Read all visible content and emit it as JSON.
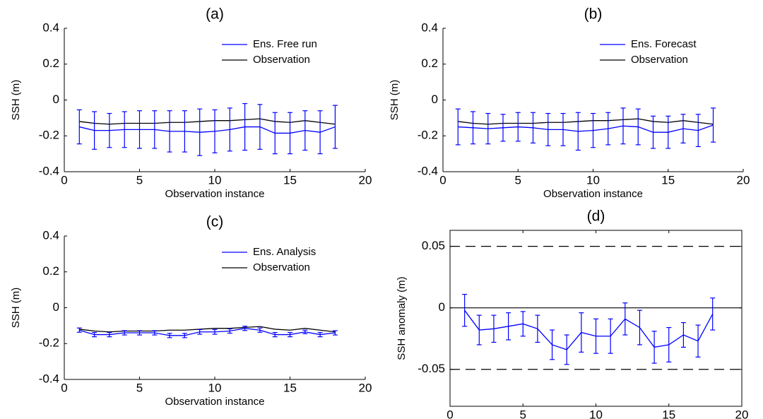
{
  "chart_data": [
    {
      "type": "errorbar",
      "title": "(a)",
      "xlabel": "Observation instance",
      "ylabel": "SSH (m)",
      "x": [
        1,
        2,
        3,
        4,
        5,
        6,
        7,
        8,
        9,
        10,
        11,
        12,
        13,
        14,
        15,
        16,
        17,
        18
      ],
      "series": [
        {
          "name": "Ens. Free run",
          "color": "#0000ff",
          "values": [
            -0.15,
            -0.17,
            -0.17,
            -0.165,
            -0.165,
            -0.165,
            -0.175,
            -0.175,
            -0.18,
            -0.175,
            -0.165,
            -0.15,
            -0.15,
            -0.185,
            -0.185,
            -0.17,
            -0.18,
            -0.15
          ],
          "errors": [
            0.095,
            0.105,
            0.095,
            0.1,
            0.105,
            0.105,
            0.115,
            0.115,
            0.13,
            0.12,
            0.12,
            0.13,
            0.125,
            0.115,
            0.115,
            0.11,
            0.12,
            0.12
          ]
        },
        {
          "name": "Observation",
          "color": "#000000",
          "values": [
            -0.12,
            -0.13,
            -0.135,
            -0.13,
            -0.13,
            -0.13,
            -0.125,
            -0.125,
            -0.12,
            -0.115,
            -0.115,
            -0.11,
            -0.105,
            -0.12,
            -0.125,
            -0.115,
            -0.125,
            -0.135
          ]
        }
      ],
      "xlim": [
        0,
        20
      ],
      "xticks": [
        0,
        5,
        10,
        15,
        20
      ],
      "ylim": [
        -0.4,
        0.4
      ],
      "yticks": [
        -0.4,
        -0.2,
        0,
        0.2,
        0.4
      ],
      "legend": "top-right"
    },
    {
      "type": "errorbar",
      "title": "(b)",
      "xlabel": "Observation instance",
      "ylabel": "SSH (m)",
      "x": [
        1,
        2,
        3,
        4,
        5,
        6,
        7,
        8,
        9,
        10,
        11,
        12,
        13,
        14,
        15,
        16,
        17,
        18
      ],
      "series": [
        {
          "name": "Ens. Forecast",
          "color": "#0000ff",
          "values": [
            -0.15,
            -0.155,
            -0.16,
            -0.155,
            -0.15,
            -0.155,
            -0.165,
            -0.165,
            -0.175,
            -0.17,
            -0.16,
            -0.145,
            -0.15,
            -0.18,
            -0.18,
            -0.16,
            -0.17,
            -0.14
          ],
          "errors": [
            0.1,
            0.09,
            0.085,
            0.075,
            0.08,
            0.085,
            0.09,
            0.09,
            0.105,
            0.095,
            0.09,
            0.1,
            0.1,
            0.09,
            0.09,
            0.08,
            0.09,
            0.095
          ]
        },
        {
          "name": "Observation",
          "color": "#000000",
          "values": [
            -0.12,
            -0.13,
            -0.135,
            -0.13,
            -0.13,
            -0.13,
            -0.125,
            -0.125,
            -0.12,
            -0.115,
            -0.115,
            -0.11,
            -0.105,
            -0.12,
            -0.125,
            -0.115,
            -0.125,
            -0.135
          ]
        }
      ],
      "xlim": [
        0,
        20
      ],
      "xticks": [
        0,
        5,
        10,
        15,
        20
      ],
      "ylim": [
        -0.4,
        0.4
      ],
      "yticks": [
        -0.4,
        -0.2,
        0,
        0.2,
        0.4
      ],
      "legend": "top-right"
    },
    {
      "type": "errorbar",
      "title": "(c)",
      "xlabel": "Observation instance",
      "ylabel": "SSH (m)",
      "x": [
        1,
        2,
        3,
        4,
        5,
        6,
        7,
        8,
        9,
        10,
        11,
        12,
        13,
        14,
        15,
        16,
        17,
        18
      ],
      "series": [
        {
          "name": "Ens. Analysis",
          "color": "#0000ff",
          "values": [
            -0.125,
            -0.15,
            -0.15,
            -0.14,
            -0.14,
            -0.14,
            -0.155,
            -0.155,
            -0.135,
            -0.135,
            -0.13,
            -0.115,
            -0.125,
            -0.15,
            -0.15,
            -0.135,
            -0.15,
            -0.14
          ],
          "errors": [
            0.012,
            0.012,
            0.012,
            0.012,
            0.012,
            0.012,
            0.012,
            0.012,
            0.013,
            0.013,
            0.012,
            0.012,
            0.012,
            0.012,
            0.012,
            0.01,
            0.012,
            0.012
          ]
        },
        {
          "name": "Observation",
          "color": "#000000",
          "values": [
            -0.12,
            -0.13,
            -0.135,
            -0.13,
            -0.13,
            -0.13,
            -0.125,
            -0.125,
            -0.12,
            -0.115,
            -0.115,
            -0.11,
            -0.105,
            -0.12,
            -0.125,
            -0.115,
            -0.125,
            -0.135
          ]
        }
      ],
      "xlim": [
        0,
        20
      ],
      "xticks": [
        0,
        5,
        10,
        15,
        20
      ],
      "ylim": [
        -0.4,
        0.4
      ],
      "yticks": [
        -0.4,
        -0.2,
        0,
        0.2,
        0.4
      ],
      "legend": "top-right"
    },
    {
      "type": "errorbar",
      "title": "(d)",
      "xlabel": "Observation instance",
      "ylabel": "SSH anomaly (m)",
      "x": [
        1,
        2,
        3,
        4,
        5,
        6,
        7,
        8,
        9,
        10,
        11,
        12,
        13,
        14,
        15,
        16,
        17,
        18
      ],
      "series": [
        {
          "color": "#0000ff",
          "values": [
            -0.002,
            -0.018,
            -0.017,
            -0.015,
            -0.013,
            -0.017,
            -0.03,
            -0.034,
            -0.02,
            -0.023,
            -0.023,
            -0.009,
            -0.016,
            -0.032,
            -0.03,
            -0.022,
            -0.027,
            -0.005
          ],
          "errors": [
            0.013,
            0.012,
            0.011,
            0.011,
            0.01,
            0.011,
            0.012,
            0.012,
            0.016,
            0.014,
            0.014,
            0.013,
            0.014,
            0.013,
            0.014,
            0.01,
            0.013,
            0.013
          ]
        }
      ],
      "hlines": [
        0.05,
        0,
        -0.05
      ],
      "hline_dashed": [
        true,
        false,
        true
      ],
      "hline_color": "#000000",
      "xlim": [
        0,
        20
      ],
      "xticks": [
        0,
        5,
        10,
        15,
        20
      ],
      "ylim": [
        -0.08,
        0.063
      ],
      "yticks": [
        -0.05,
        0,
        0.05
      ],
      "box": true
    }
  ]
}
